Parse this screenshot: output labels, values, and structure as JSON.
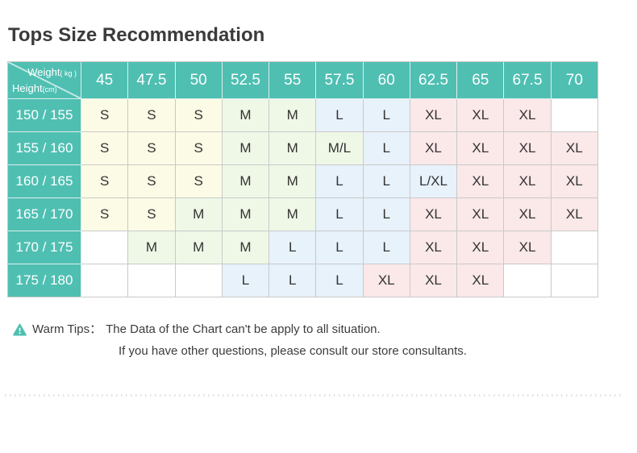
{
  "title": "Tops Size Recommendation",
  "chart_data": {
    "type": "table",
    "title": "Tops Size Recommendation",
    "corner": {
      "weight_label": "Weight",
      "weight_unit": "( kg )",
      "height_label": "Height",
      "height_unit": "(cm)"
    },
    "weight_columns_kg": [
      "45",
      "47.5",
      "50",
      "52.5",
      "55",
      "57.5",
      "60",
      "62.5",
      "65",
      "67.5",
      "70"
    ],
    "rows": [
      {
        "height_cm": "150 / 155",
        "sizes": [
          "S",
          "S",
          "S",
          "M",
          "M",
          "L",
          "L",
          "XL",
          "XL",
          "XL",
          ""
        ]
      },
      {
        "height_cm": "155 / 160",
        "sizes": [
          "S",
          "S",
          "S",
          "M",
          "M",
          "M/L",
          "L",
          "XL",
          "XL",
          "XL",
          "XL"
        ]
      },
      {
        "height_cm": "160 / 165",
        "sizes": [
          "S",
          "S",
          "S",
          "M",
          "M",
          "L",
          "L",
          "L/XL",
          "XL",
          "XL",
          "XL"
        ]
      },
      {
        "height_cm": "165 / 170",
        "sizes": [
          "S",
          "S",
          "M",
          "M",
          "M",
          "L",
          "L",
          "XL",
          "XL",
          "XL",
          "XL"
        ]
      },
      {
        "height_cm": "170 / 175",
        "sizes": [
          "",
          "M",
          "M",
          "M",
          "L",
          "L",
          "L",
          "XL",
          "XL",
          "XL",
          ""
        ]
      },
      {
        "height_cm": "175 / 180",
        "sizes": [
          "",
          "",
          "",
          "L",
          "L",
          "L",
          "XL",
          "XL",
          "XL",
          "",
          ""
        ]
      }
    ]
  },
  "tips": {
    "label": "Warm Tips：",
    "line1": "The Data of the Chart can't be apply to all situation.",
    "line2": "If you have other questions, please consult our store consultants."
  },
  "colors": {
    "teal": "#4FBFB2",
    "teal_grid": "#DDEFEC",
    "grid": "#C9C9C9",
    "size_s_bg": "#FCFBE5",
    "size_m_bg": "#EFF8E7",
    "size_l_bg": "#E7F2FB",
    "size_xl_bg": "#FBE8E9",
    "title_text": "#3B3B3B",
    "cell_text": "#333333"
  }
}
